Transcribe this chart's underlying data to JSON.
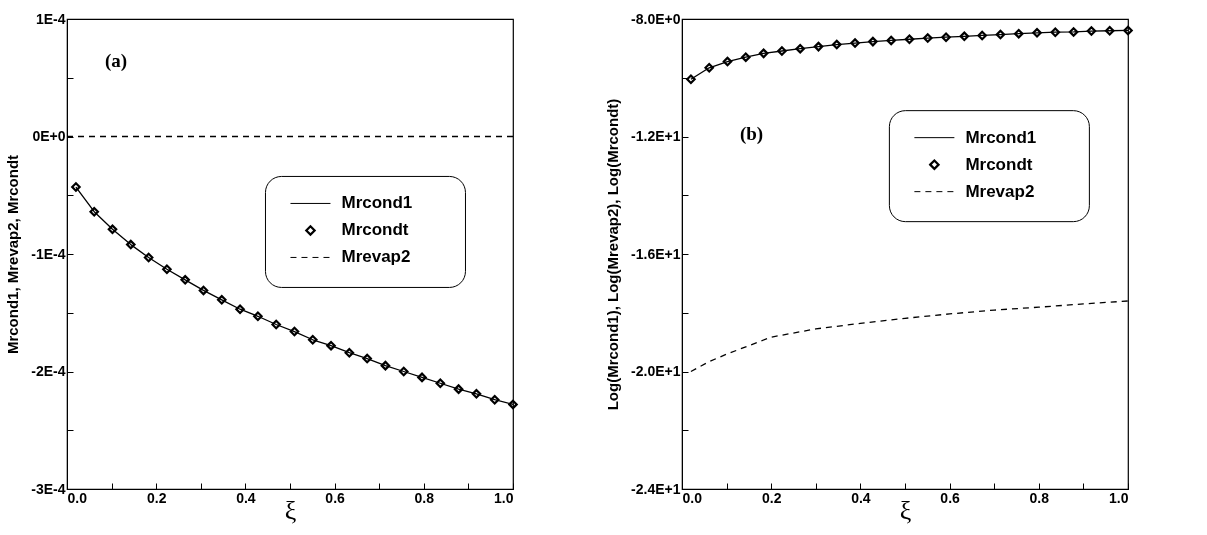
{
  "chart_data": [
    {
      "type": "line",
      "annotations": [
        "(a)"
      ],
      "xlabel": "ξ",
      "ylabel": "Mrcond1, Mrevap2, Mrcondt",
      "xlim": [
        0,
        1
      ],
      "ylim": [
        -0.0003,
        0.0001
      ],
      "xticks": [
        {
          "value": 0,
          "label": "0.0"
        },
        {
          "value": 0.1,
          "label": null
        },
        0.2,
        {
          "value": 0.3,
          "label": null
        },
        0.4,
        {
          "value": 0.5,
          "label": null
        },
        0.6,
        {
          "value": 0.7,
          "label": null
        },
        0.8,
        {
          "value": 0.9,
          "label": null
        },
        {
          "value": 1,
          "label": "1.0"
        }
      ],
      "yticks": [
        {
          "value": -0.0003,
          "label": "-3E-4"
        },
        {
          "value": -0.00025,
          "label": null
        },
        {
          "value": -0.0002,
          "label": "-2E-4"
        },
        {
          "value": -0.00015,
          "label": null
        },
        {
          "value": -0.0001,
          "label": "-1E-4"
        },
        {
          "value": -5e-05,
          "label": null
        },
        {
          "value": 0,
          "label": "0E+0"
        },
        {
          "value": 5e-05,
          "label": null
        },
        {
          "value": 0.0001,
          "label": "1E-4"
        }
      ],
      "grid": false,
      "legend": "right",
      "x": [
        0.02,
        0.061,
        0.102,
        0.143,
        0.183,
        0.224,
        0.265,
        0.306,
        0.347,
        0.388,
        0.428,
        0.469,
        0.51,
        0.551,
        0.592,
        0.633,
        0.673,
        0.714,
        0.755,
        0.796,
        0.837,
        0.878,
        0.918,
        0.959,
        1.0
      ],
      "series": [
        {
          "name": "Mrcond1",
          "type": "line",
          "line_style": "solid",
          "color": "#000000",
          "values": [
            -4.3e-05,
            -6.4e-05,
            -7.9e-05,
            -9.2e-05,
            -0.000103,
            -0.000113,
            -0.000122,
            -0.000131,
            -0.000139,
            -0.000147,
            -0.000153,
            -0.00016,
            -0.000166,
            -0.000173,
            -0.000178,
            -0.000184,
            -0.000189,
            -0.000195,
            -0.0002,
            -0.000205,
            -0.00021,
            -0.000215,
            -0.000219,
            -0.000224,
            -0.000228
          ]
        },
        {
          "name": "Mrcondt",
          "type": "scatter",
          "marker": "diamond",
          "color": "#000000",
          "values": [
            -4.3e-05,
            -6.4e-05,
            -7.9e-05,
            -9.2e-05,
            -0.000103,
            -0.000113,
            -0.000122,
            -0.000131,
            -0.000139,
            -0.000147,
            -0.000153,
            -0.00016,
            -0.000166,
            -0.000173,
            -0.000178,
            -0.000184,
            -0.000189,
            -0.000195,
            -0.0002,
            -0.000205,
            -0.00021,
            -0.000215,
            -0.000219,
            -0.000224,
            -0.000228
          ]
        },
        {
          "name": "Mrevap2",
          "type": "line",
          "line_style": "dashed",
          "color": "#000000",
          "x": [
            0,
            1
          ],
          "values": [
            0,
            0
          ]
        }
      ]
    },
    {
      "type": "line",
      "annotations": [
        "(b)"
      ],
      "xlabel": "ξ",
      "ylabel": "Log(Mrcond1), Log(Mrevap2), Log(Mrcondt)",
      "xlim": [
        0,
        1
      ],
      "ylim": [
        -24,
        -8
      ],
      "xticks": [
        {
          "value": 0,
          "label": "0.0"
        },
        {
          "value": 0.1,
          "label": null
        },
        0.2,
        {
          "value": 0.3,
          "label": null
        },
        0.4,
        {
          "value": 0.5,
          "label": null
        },
        0.6,
        {
          "value": 0.7,
          "label": null
        },
        0.8,
        {
          "value": 0.9,
          "label": null
        },
        {
          "value": 1,
          "label": "1.0"
        }
      ],
      "yticks": [
        {
          "value": -24,
          "label": "-2.4E+1"
        },
        {
          "value": -22,
          "label": null
        },
        {
          "value": -20,
          "label": "-2.0E+1"
        },
        {
          "value": -18,
          "label": null
        },
        {
          "value": -16,
          "label": "-1.6E+1"
        },
        {
          "value": -14,
          "label": null
        },
        {
          "value": -12,
          "label": "-1.2E+1"
        },
        {
          "value": -10,
          "label": null
        },
        {
          "value": -8,
          "label": "-8.0E+0"
        }
      ],
      "grid": false,
      "legend": "top right",
      "x": [
        0.02,
        0.061,
        0.102,
        0.143,
        0.183,
        0.224,
        0.265,
        0.306,
        0.347,
        0.388,
        0.428,
        0.469,
        0.51,
        0.551,
        0.592,
        0.633,
        0.673,
        0.714,
        0.755,
        0.796,
        0.837,
        0.878,
        0.918,
        0.959,
        1.0
      ],
      "series": [
        {
          "name": "Mrcond1",
          "type": "line",
          "line_style": "solid",
          "color": "#000000",
          "values": [
            -10.05,
            -9.66,
            -9.45,
            -9.3,
            -9.17,
            -9.09,
            -9.01,
            -8.94,
            -8.87,
            -8.82,
            -8.77,
            -8.73,
            -8.69,
            -8.65,
            -8.62,
            -8.59,
            -8.56,
            -8.53,
            -8.5,
            -8.47,
            -8.45,
            -8.44,
            -8.41,
            -8.4,
            -8.39
          ]
        },
        {
          "name": "Mrcondt",
          "type": "scatter",
          "marker": "diamond",
          "color": "#000000",
          "values": [
            -10.05,
            -9.66,
            -9.45,
            -9.3,
            -9.17,
            -9.09,
            -9.01,
            -8.94,
            -8.87,
            -8.82,
            -8.77,
            -8.73,
            -8.69,
            -8.65,
            -8.62,
            -8.59,
            -8.56,
            -8.53,
            -8.5,
            -8.47,
            -8.45,
            -8.44,
            -8.41,
            -8.4,
            -8.39
          ]
        },
        {
          "name": "Mrevap2",
          "type": "line",
          "line_style": "dashed",
          "color": "#000000",
          "x": [
            0.02,
            0.06,
            0.1,
            0.2,
            0.3,
            0.4,
            0.5,
            0.6,
            0.7,
            0.8,
            0.9,
            1.0
          ],
          "values": [
            -20.0,
            -19.67,
            -19.41,
            -18.83,
            -18.55,
            -18.36,
            -18.19,
            -18.04,
            -17.91,
            -17.81,
            -17.7,
            -17.6
          ]
        }
      ]
    }
  ]
}
